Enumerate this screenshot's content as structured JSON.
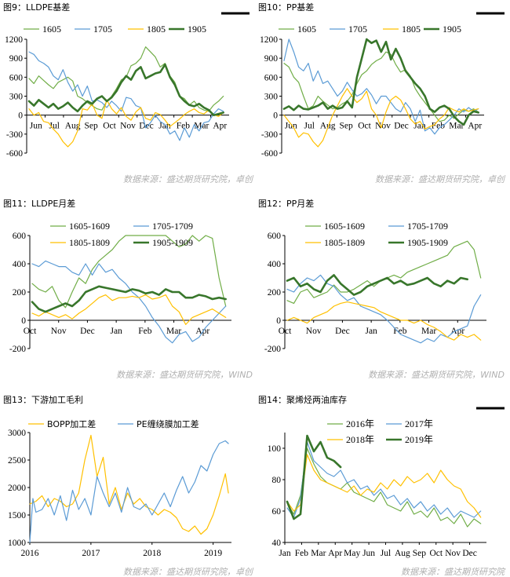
{
  "palette": {
    "c1": "#70AD47",
    "c2": "#5B9BD5",
    "c3": "#FFC000",
    "c4": "#38762B",
    "source": "#B0B0B0"
  },
  "chart_data": [
    {
      "id": "fig9",
      "type": "line",
      "title": "图9：LLDPE基差",
      "source": "数据来源：盛达期货研究院，卓创",
      "ylim": [
        -600,
        1200
      ],
      "yticks": [
        -600,
        -300,
        0,
        300,
        600,
        900,
        1200
      ],
      "x_tick_labels": [
        "Jun",
        "Jul",
        "Aug",
        "Sep",
        "Oct",
        "Nov",
        "Dec",
        "Jan",
        "Feb",
        "Mar",
        "Apr"
      ],
      "legend_placement": "top",
      "series": [
        {
          "name": "1605",
          "color": "#70AD47",
          "width": 1.2,
          "values": [
            580,
            500,
            620,
            550,
            480,
            420,
            520,
            560,
            600,
            540,
            300,
            260,
            200,
            150,
            100,
            80,
            220,
            300,
            420,
            560,
            600,
            780,
            820,
            900,
            1080,
            1000,
            920,
            760,
            820,
            620,
            520,
            300,
            260,
            160,
            220,
            120,
            80,
            60,
            160,
            220,
            300
          ]
        },
        {
          "name": "1705",
          "color": "#5B9BD5",
          "width": 1.2,
          "values": [
            1000,
            960,
            860,
            820,
            760,
            620,
            560,
            720,
            520,
            380,
            480,
            300,
            460,
            220,
            240,
            200,
            120,
            220,
            150,
            60,
            280,
            260,
            150,
            120,
            -200,
            -120,
            0,
            -100,
            -150,
            -300,
            -250,
            -400,
            -200,
            -350,
            -150,
            -250,
            -120,
            -100,
            20,
            100,
            60
          ]
        },
        {
          "name": "1805",
          "color": "#FFC000",
          "width": 1.2,
          "values": [
            100,
            0,
            40,
            -100,
            -120,
            -220,
            -300,
            -420,
            -500,
            -420,
            -250,
            100,
            80,
            180,
            0,
            -50,
            240,
            100,
            20,
            120,
            -20,
            -80,
            50,
            120,
            -50,
            -80,
            40,
            10,
            -80,
            -180,
            -120,
            -60,
            10,
            60,
            100,
            40,
            20,
            80,
            10,
            -20,
            40
          ]
        },
        {
          "name": "1905",
          "color": "#38762B",
          "width": 2.6,
          "values": [
            220,
            150,
            240,
            180,
            120,
            180,
            100,
            140,
            200,
            120,
            60,
            150,
            220,
            180,
            260,
            300,
            220,
            280,
            380,
            520,
            620,
            560,
            700,
            760,
            580,
            620,
            660,
            680,
            800,
            600,
            480,
            300,
            220,
            160,
            140,
            180,
            120,
            80,
            0,
            20,
            40
          ]
        }
      ]
    },
    {
      "id": "fig10",
      "type": "line",
      "title": "图10：PP基差",
      "source": "数据来源：盛达期货研究院，卓创",
      "ylim": [
        -600,
        1200
      ],
      "yticks": [
        -600,
        -300,
        0,
        300,
        600,
        900,
        1200
      ],
      "x_tick_labels": [
        "Jun",
        "Jul",
        "Aug",
        "Sep",
        "Oct",
        "Nov",
        "Dec",
        "Jan",
        "Feb",
        "Mar",
        "Apr"
      ],
      "legend_placement": "top",
      "series": [
        {
          "name": "1605",
          "color": "#70AD47",
          "width": 1.2,
          "values": [
            820,
            760,
            600,
            520,
            300,
            100,
            150,
            300,
            220,
            160,
            100,
            120,
            180,
            220,
            320,
            500,
            640,
            700,
            800,
            860,
            900,
            1000,
            960,
            800,
            680,
            720,
            620,
            420,
            300,
            200,
            100,
            0,
            -100,
            -80,
            0,
            -50,
            20,
            80,
            60,
            100,
            50
          ]
        },
        {
          "name": "1705",
          "color": "#5B9BD5",
          "width": 1.2,
          "values": [
            860,
            1200,
            1000,
            760,
            700,
            820,
            540,
            700,
            500,
            540,
            420,
            300,
            380,
            520,
            400,
            300,
            340,
            420,
            320,
            180,
            300,
            300,
            200,
            100,
            50,
            200,
            100,
            -100,
            80,
            -250,
            -200,
            -300,
            -200,
            -150,
            -80,
            0,
            100,
            50,
            120,
            60,
            100
          ]
        },
        {
          "name": "1805",
          "color": "#FFC000",
          "width": 1.2,
          "values": [
            0,
            -100,
            -200,
            -350,
            -280,
            -300,
            -420,
            -500,
            -400,
            -200,
            0,
            150,
            300,
            420,
            300,
            200,
            260,
            380,
            100,
            0,
            -200,
            50,
            240,
            300,
            240,
            100,
            -60,
            -140,
            -100,
            -220,
            -180,
            -150,
            -60,
            0,
            120,
            80,
            50,
            100,
            60,
            80,
            100
          ]
        },
        {
          "name": "1905",
          "color": "#38762B",
          "width": 2.6,
          "values": [
            100,
            140,
            80,
            150,
            100,
            90,
            120,
            150,
            200,
            100,
            150,
            100,
            120,
            220,
            120,
            600,
            900,
            1200,
            1140,
            1180,
            1000,
            1160,
            880,
            1050,
            900,
            700,
            600,
            500,
            420,
            300,
            100,
            50,
            120,
            150,
            100,
            -20,
            -100,
            -150,
            0,
            60,
            40
          ]
        }
      ]
    },
    {
      "id": "fig11",
      "type": "line",
      "title": "图11：LLDPE月差",
      "source": "数据来源：盛达期货研究院，WIND",
      "ylim": [
        -200,
        600
      ],
      "yticks": [
        -200,
        0,
        200,
        400,
        600
      ],
      "x_tick_labels": [
        "Oct",
        "Nov",
        "Dec",
        "Jan",
        "Feb",
        "Mar",
        "Apr"
      ],
      "legend_placement": "top",
      "series": [
        {
          "name": "1605-1609",
          "color": "#70AD47",
          "width": 1.2,
          "values": [
            260,
            220,
            200,
            240,
            140,
            90,
            200,
            300,
            260,
            360,
            420,
            460,
            500,
            560,
            600,
            600,
            600,
            600,
            600,
            600,
            600,
            560,
            520,
            540,
            600,
            560,
            600,
            580,
            300,
            100
          ]
        },
        {
          "name": "1705-1709",
          "color": "#5B9BD5",
          "width": 1.2,
          "values": [
            400,
            380,
            420,
            400,
            380,
            380,
            340,
            320,
            400,
            320,
            400,
            340,
            360,
            300,
            260,
            200,
            160,
            100,
            20,
            -40,
            -120,
            -160,
            -100,
            -80,
            -150,
            -120,
            -50,
            0,
            50,
            100
          ]
        },
        {
          "name": "1805-1809",
          "color": "#FFC000",
          "width": 1.2,
          "values": [
            50,
            30,
            60,
            40,
            20,
            40,
            10,
            50,
            80,
            120,
            160,
            180,
            140,
            160,
            160,
            170,
            160,
            180,
            150,
            160,
            180,
            100,
            60,
            -30,
            20,
            40,
            60,
            80,
            50,
            20
          ]
        },
        {
          "name": "1905-1909",
          "color": "#38762B",
          "width": 2.6,
          "values": [
            130,
            80,
            60,
            80,
            100,
            120,
            100,
            140,
            200,
            220,
            240,
            230,
            220,
            210,
            200,
            220,
            210,
            190,
            200,
            180,
            220,
            200,
            200,
            160,
            160,
            180,
            170,
            150,
            160,
            150
          ]
        }
      ]
    },
    {
      "id": "fig12",
      "type": "line",
      "title": "图12：PP月差",
      "source": "数据来源：盛达期货研究院，WIND",
      "ylim": [
        -200,
        600
      ],
      "yticks": [
        -200,
        0,
        200,
        400,
        600
      ],
      "x_tick_labels": [
        "Oct",
        "Nov",
        "Dec",
        "Jan",
        "Feb",
        "Mar",
        "Apr"
      ],
      "legend_placement": "top",
      "series": [
        {
          "name": "1605-1609",
          "color": "#70AD47",
          "width": 1.2,
          "values": [
            140,
            120,
            200,
            220,
            160,
            180,
            200,
            250,
            200,
            200,
            220,
            250,
            280,
            240,
            280,
            300,
            320,
            300,
            340,
            360,
            380,
            400,
            420,
            440,
            460,
            520,
            540,
            560,
            500,
            300
          ]
        },
        {
          "name": "1705-1709",
          "color": "#5B9BD5",
          "width": 1.2,
          "values": [
            220,
            200,
            260,
            300,
            280,
            320,
            260,
            240,
            180,
            140,
            160,
            100,
            80,
            60,
            40,
            0,
            -50,
            -100,
            -120,
            -140,
            -160,
            -130,
            -150,
            -100,
            -120,
            -80,
            -60,
            -40,
            100,
            180
          ]
        },
        {
          "name": "1805-1809",
          "color": "#FFC000",
          "width": 1.2,
          "values": [
            0,
            20,
            0,
            -20,
            20,
            40,
            60,
            100,
            120,
            130,
            120,
            110,
            100,
            90,
            60,
            40,
            20,
            0,
            0,
            -20,
            0,
            -30,
            -50,
            -80,
            -120,
            -140,
            -100,
            -120,
            -100,
            -140
          ]
        },
        {
          "name": "1905-1909",
          "color": "#38762B",
          "width": 2.6,
          "values": [
            280,
            300,
            240,
            260,
            220,
            200,
            280,
            320,
            260,
            220,
            180,
            200,
            240,
            260,
            280,
            300,
            260,
            280,
            250,
            260,
            280,
            300,
            260,
            240,
            280,
            260,
            300,
            290
          ]
        }
      ]
    },
    {
      "id": "fig13",
      "type": "line",
      "title": "图13：下游加工毛利",
      "source": "数据来源：盛达期货研究院，卓创",
      "ylim": [
        1000,
        3000
      ],
      "yticks": [
        1000,
        1500,
        2000,
        2500,
        3000
      ],
      "xlim": [
        2016,
        2019.3
      ],
      "xticks": [
        2016,
        2017,
        2018,
        2019
      ],
      "legend_placement": "top",
      "series": [
        {
          "name": "BOPP加工差",
          "color": "#FFC000",
          "width": 1.2,
          "x": [
            2016.0,
            2016.1,
            2016.2,
            2016.3,
            2016.4,
            2016.5,
            2016.6,
            2016.7,
            2016.8,
            2016.9,
            2017.0,
            2017.1,
            2017.2,
            2017.3,
            2017.4,
            2017.5,
            2017.6,
            2017.7,
            2017.8,
            2017.9,
            2018.0,
            2018.1,
            2018.2,
            2018.3,
            2018.4,
            2018.5,
            2018.6,
            2018.7,
            2018.8,
            2018.9,
            2019.0,
            2019.1,
            2019.2,
            2019.25
          ],
          "values": [
            1700,
            1750,
            1850,
            1650,
            1800,
            1750,
            1650,
            1700,
            1900,
            2500,
            2950,
            2200,
            2550,
            1700,
            2000,
            1600,
            1900,
            1700,
            1800,
            1650,
            1600,
            1500,
            1600,
            1550,
            1450,
            1250,
            1200,
            1300,
            1150,
            1250,
            1500,
            1850,
            2250,
            1900
          ]
        },
        {
          "name": "PE缠绕膜加工差",
          "color": "#5B9BD5",
          "width": 1.2,
          "x": [
            2016.0,
            2016.05,
            2016.1,
            2016.2,
            2016.3,
            2016.4,
            2016.5,
            2016.6,
            2016.7,
            2016.8,
            2016.9,
            2017.0,
            2017.1,
            2017.2,
            2017.3,
            2017.4,
            2017.5,
            2017.6,
            2017.7,
            2017.8,
            2017.9,
            2018.0,
            2018.1,
            2018.2,
            2018.3,
            2018.4,
            2018.5,
            2018.6,
            2018.7,
            2018.8,
            2018.9,
            2019.0,
            2019.1,
            2019.2,
            2019.25
          ],
          "values": [
            1000,
            1800,
            1550,
            1600,
            1800,
            1500,
            1850,
            1400,
            1950,
            1600,
            1800,
            1500,
            2200,
            1900,
            1650,
            1900,
            1550,
            2000,
            1650,
            1600,
            1700,
            1500,
            1700,
            1900,
            1650,
            1950,
            2200,
            1900,
            2100,
            2400,
            2300,
            2600,
            2800,
            2850,
            2800
          ]
        }
      ]
    },
    {
      "id": "fig14",
      "type": "line",
      "title": "图14：聚烯烃两油库存",
      "source": "数据来源：盛达期货研究院",
      "ylim": [
        40,
        110
      ],
      "yticks": [
        40,
        60,
        80,
        100
      ],
      "x_tick_labels": [
        "Jan",
        "Feb",
        "Mar",
        "Apr",
        "May",
        "Jun",
        "Jul",
        "Aug",
        "Sep",
        "Oct",
        "Nov",
        "Dec"
      ],
      "legend_placement": "top",
      "series": [
        {
          "name": "2016年",
          "color": "#70AD47",
          "width": 1.2,
          "values": [
            65,
            58,
            70,
            100,
            90,
            82,
            78,
            76,
            74,
            78,
            72,
            70,
            68,
            66,
            72,
            64,
            62,
            60,
            66,
            58,
            60,
            56,
            62,
            54,
            56,
            52,
            58,
            50,
            55,
            52
          ]
        },
        {
          "name": "2017年",
          "color": "#5B9BD5",
          "width": 1.2,
          "values": [
            62,
            56,
            68,
            104,
            92,
            88,
            84,
            82,
            86,
            78,
            80,
            74,
            76,
            70,
            74,
            68,
            70,
            64,
            68,
            62,
            66,
            60,
            64,
            58,
            62,
            56,
            60,
            58,
            56,
            60
          ]
        },
        {
          "name": "2018年",
          "color": "#FFC000",
          "width": 1.2,
          "values": [
            66,
            60,
            64,
            96,
            86,
            80,
            78,
            76,
            74,
            72,
            76,
            70,
            74,
            72,
            78,
            74,
            80,
            76,
            82,
            78,
            80,
            84,
            78,
            86,
            80,
            76,
            74,
            66,
            62,
            56
          ]
        },
        {
          "name": "2019年",
          "color": "#38762B",
          "width": 2.6,
          "values": [
            66,
            55,
            58,
            108,
            98,
            104,
            94,
            92,
            88
          ]
        }
      ]
    }
  ]
}
